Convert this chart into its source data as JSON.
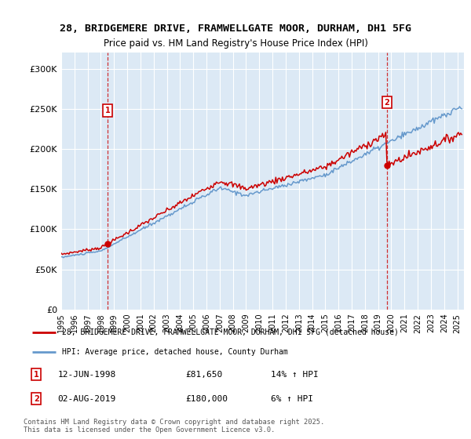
{
  "title_line1": "28, BRIDGEMERE DRIVE, FRAMWELLGATE MOOR, DURHAM, DH1 5FG",
  "title_line2": "Price paid vs. HM Land Registry's House Price Index (HPI)",
  "background_color": "#dce9f5",
  "line1_color": "#cc0000",
  "line2_color": "#6699cc",
  "purchase1_label": "12-JUN-1998",
  "purchase1_price": "£81,650",
  "purchase1_hpi": "14% ↑ HPI",
  "purchase2_label": "02-AUG-2019",
  "purchase2_price": "£180,000",
  "purchase2_hpi": "6% ↑ HPI",
  "legend_line1": "28, BRIDGEMERE DRIVE, FRAMWELLGATE MOOR, DURHAM, DH1 5FG (detached house)",
  "legend_line2": "HPI: Average price, detached house, County Durham",
  "footer": "Contains HM Land Registry data © Crown copyright and database right 2025.\nThis data is licensed under the Open Government Licence v3.0.",
  "ylim": [
    0,
    320000
  ],
  "yticks": [
    0,
    50000,
    100000,
    150000,
    200000,
    250000,
    300000
  ],
  "ytick_labels": [
    "£0",
    "£50K",
    "£100K",
    "£150K",
    "£200K",
    "£250K",
    "£300K"
  ]
}
